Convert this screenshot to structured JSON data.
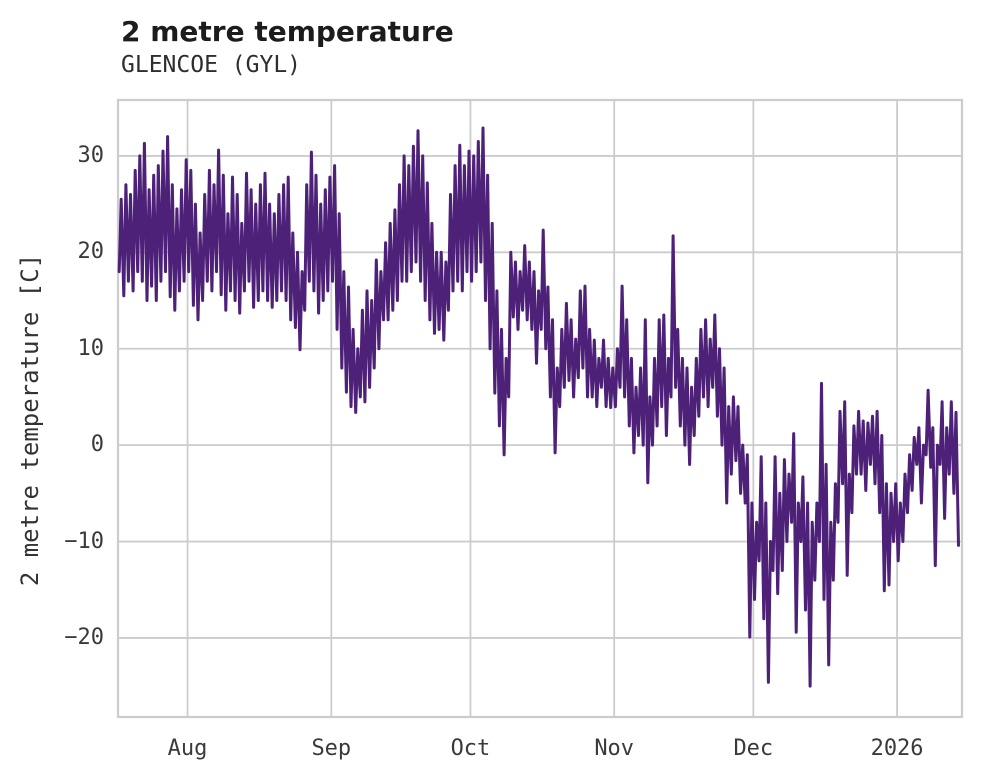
{
  "chart_data": {
    "type": "line",
    "title": "2 metre temperature",
    "subtitle": "GLENCOE (GYL)",
    "ylabel": "2 metre temperature [C]",
    "xlabel": "",
    "legend": null,
    "grid": true,
    "background_color": "#ffffff",
    "grid_color": "#cccccc",
    "line_color": "#4e2179",
    "text_color": "#3a3a3a",
    "xlim_days": [
      0,
      182
    ],
    "ylim": [
      -28.2,
      35.8
    ],
    "yticks": [
      {
        "value": 30,
        "label": "30"
      },
      {
        "value": 20,
        "label": "20"
      },
      {
        "value": 10,
        "label": "10"
      },
      {
        "value": 0,
        "label": "0"
      },
      {
        "value": -10,
        "label": "−10"
      },
      {
        "value": -20,
        "label": "−20"
      }
    ],
    "xticks": [
      {
        "day": 15,
        "label": "Aug"
      },
      {
        "day": 46,
        "label": "Sep"
      },
      {
        "day": 76,
        "label": "Oct"
      },
      {
        "day": 107,
        "label": "Nov"
      },
      {
        "day": 137,
        "label": "Dec"
      },
      {
        "day": 168,
        "label": "2026"
      }
    ],
    "series": [
      {
        "name": "2 metre temperature",
        "sampling": "two samples per day (daily min / daily max), day 0 ≈ mid-July, crossing into 2026",
        "daily_min": [
          18,
          15.5,
          17,
          16,
          18,
          17,
          15,
          16.5,
          15,
          17,
          18,
          15.4,
          14,
          16,
          17,
          18,
          14.5,
          13,
          15,
          17,
          16,
          18,
          15.6,
          14,
          16,
          15,
          13.7,
          16,
          17,
          14.3,
          15,
          16,
          15,
          14.3,
          15,
          16,
          15,
          13,
          12.2,
          9.9,
          14,
          17,
          16,
          13.7,
          15,
          16,
          17,
          12,
          8,
          5.5,
          4,
          3.4,
          5,
          4.5,
          6,
          8,
          10,
          13,
          13,
          14,
          15,
          17,
          17,
          18,
          19,
          17,
          15,
          13,
          11.6,
          12,
          10.9,
          14,
          16,
          17,
          16,
          18,
          17,
          18,
          19,
          15,
          10,
          5.4,
          2,
          -1,
          5,
          13.3,
          12,
          14,
          13,
          12,
          8.5,
          12,
          10,
          5,
          -0.8,
          4,
          6,
          6.7,
          5,
          7,
          8,
          5,
          5,
          4,
          6,
          4,
          3.9,
          4,
          6,
          5,
          2,
          -0.8,
          1,
          0,
          -3.9,
          0,
          2,
          4,
          1,
          5,
          6,
          2,
          0,
          -2,
          1,
          3,
          5,
          4,
          6,
          3,
          0,
          -6,
          -3,
          -1.6,
          -5,
          -6,
          -19.9,
          -16,
          -12,
          -18,
          -24.6,
          -13,
          -15.4,
          -13,
          -10,
          -8,
          -19.4,
          -10,
          -17.1,
          -25,
          -14,
          -10,
          -16,
          -22.8,
          -14,
          -8,
          -4,
          -13.5,
          -7,
          -3,
          -3,
          -4.7,
          -2,
          -4,
          -7,
          -15.1,
          -14.5,
          -10,
          -12,
          -10,
          -7,
          -4.7,
          -2,
          -6,
          -1,
          -2.3,
          -12.5,
          -2,
          -7.6,
          -3,
          -5,
          -10.4
        ],
        "daily_max": [
          25.5,
          27,
          26,
          28.5,
          30,
          31.3,
          26.5,
          28,
          29,
          30.5,
          32,
          27,
          24.5,
          26.5,
          29.6,
          28.5,
          25,
          22,
          26,
          28.5,
          27,
          30.6,
          28,
          24,
          27.8,
          26,
          23,
          28.2,
          26.5,
          25,
          27,
          28.2,
          25,
          24,
          26,
          27,
          27.8,
          22,
          20,
          18,
          27,
          30.4,
          28,
          25,
          26.5,
          27.8,
          29,
          24,
          18,
          16.4,
          12,
          10,
          14,
          16,
          15,
          19.2,
          18,
          21,
          23,
          24.4,
          27,
          30,
          29,
          31,
          32.6,
          30,
          27.2,
          23,
          20,
          20,
          19,
          26,
          29,
          31.1,
          29,
          30.5,
          30,
          31.5,
          32.9,
          28,
          23,
          16,
          12,
          9,
          20,
          19,
          18,
          20.7,
          19,
          18,
          16,
          22.3,
          16.4,
          13,
          8,
          12,
          14.7,
          13,
          11,
          16,
          16.5,
          12,
          10.9,
          9,
          10.9,
          9,
          8,
          10,
          16.5,
          13,
          9,
          6,
          8,
          13,
          5,
          9,
          13,
          13.5,
          9,
          21.7,
          12,
          9,
          8,
          6,
          9,
          12,
          13,
          11,
          13.5,
          10,
          8,
          4,
          5,
          4,
          0,
          -1,
          -6,
          -8,
          -1.2,
          -6,
          -10,
          -1.2,
          -5,
          -1.5,
          -3,
          1.2,
          -6,
          -3.3,
          -6,
          -8,
          -6,
          6.4,
          -2,
          -8,
          -4,
          3.5,
          4.5,
          -3,
          2,
          3.5,
          2.5,
          2.3,
          3,
          3.5,
          1,
          -4,
          -5,
          -4,
          -6,
          -3,
          -1,
          0.8,
          1.8,
          0,
          5.7,
          1.8,
          0,
          4.5,
          1.8,
          4.5,
          3.4,
          null
        ]
      }
    ]
  }
}
